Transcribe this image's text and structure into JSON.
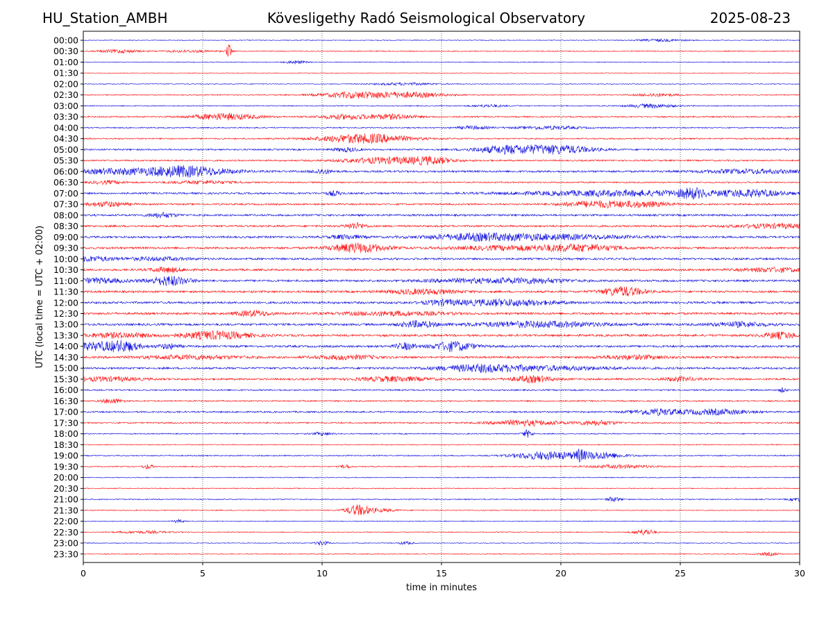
{
  "header": {
    "station": "HU_Station_AMBH",
    "observatory": "Kövesligethy Radó Seismological Observatory",
    "date": "2025-08-23"
  },
  "colors": {
    "even_row": "#0000dd",
    "odd_row": "#ff0000",
    "grid": "#000000"
  },
  "chart_data": {
    "type": "line",
    "title": "Kövesligethy Radó Seismological Observatory",
    "xlabel": "time in minutes",
    "ylabel": "UTC (local time = UTC + 02:00)",
    "xlim": [
      0,
      30
    ],
    "xticks": [
      0,
      5,
      10,
      15,
      20,
      25,
      30
    ],
    "grid": "vertical dotted at x ticks",
    "rows": [
      {
        "label": "00:00",
        "level": 1,
        "bursts": [
          [
            24.2,
            0.7,
            1.5
          ]
        ]
      },
      {
        "label": "00:30",
        "level": 1.2,
        "bursts": [
          [
            1.5,
            0.6,
            2
          ],
          [
            4.5,
            0.8,
            1.5
          ],
          [
            6.1,
            0.08,
            9
          ]
        ]
      },
      {
        "label": "01:00",
        "level": 1,
        "bursts": [
          [
            8.9,
            0.3,
            2
          ]
        ]
      },
      {
        "label": "01:30",
        "level": 0.8,
        "bursts": []
      },
      {
        "label": "02:00",
        "level": 1,
        "bursts": [
          [
            13.5,
            1,
            1.5
          ]
        ]
      },
      {
        "label": "02:30",
        "level": 1.3,
        "bursts": [
          [
            11.5,
            1.1,
            4
          ],
          [
            13.8,
            1,
            3
          ],
          [
            24,
            0.6,
            2
          ]
        ]
      },
      {
        "label": "03:00",
        "level": 1.3,
        "bursts": [
          [
            23.8,
            0.7,
            2.5
          ],
          [
            17,
            0.5,
            1.5
          ]
        ]
      },
      {
        "label": "03:30",
        "level": 1.8,
        "bursts": [
          [
            5.9,
            1,
            4
          ],
          [
            11,
            0.8,
            3
          ],
          [
            13,
            0.7,
            3
          ]
        ]
      },
      {
        "label": "04:00",
        "level": 1.5,
        "bursts": [
          [
            16.3,
            0.5,
            2
          ],
          [
            19.5,
            1,
            2
          ]
        ]
      },
      {
        "label": "04:30",
        "level": 1.8,
        "bursts": [
          [
            11.8,
            1.3,
            6
          ]
        ]
      },
      {
        "label": "05:00",
        "level": 2,
        "bursts": [
          [
            17.8,
            1,
            5
          ],
          [
            20,
            1,
            5
          ],
          [
            11,
            0.4,
            2.5
          ]
        ]
      },
      {
        "label": "05:30",
        "level": 2,
        "bursts": [
          [
            12.8,
            1.3,
            4
          ],
          [
            14.6,
            0.6,
            3.5
          ]
        ]
      },
      {
        "label": "06:00",
        "level": 2.5,
        "bursts": [
          [
            4.2,
            1.3,
            7
          ],
          [
            1.2,
            1,
            3
          ],
          [
            10,
            0.3,
            3
          ],
          [
            28,
            1.5,
            2.5
          ]
        ]
      },
      {
        "label": "06:30",
        "level": 1.8,
        "bursts": [
          [
            1,
            0.5,
            2
          ],
          [
            5,
            1,
            2
          ]
        ]
      },
      {
        "label": "07:00",
        "level": 2.3,
        "bursts": [
          [
            22.5,
            3,
            3.5
          ],
          [
            25.5,
            0.4,
            5
          ],
          [
            28,
            1,
            4
          ],
          [
            10.5,
            0.2,
            3
          ]
        ]
      },
      {
        "label": "07:30",
        "level": 2.2,
        "bursts": [
          [
            21.5,
            1,
            4
          ],
          [
            1,
            0.6,
            3
          ],
          [
            23.5,
            0.8,
            3
          ]
        ]
      },
      {
        "label": "08:00",
        "level": 2.5,
        "bursts": [
          [
            3.3,
            0.4,
            3
          ]
        ]
      },
      {
        "label": "08:30",
        "level": 2.5,
        "bursts": [
          [
            11.4,
            0.3,
            4
          ],
          [
            29,
            1.2,
            2.5
          ]
        ]
      },
      {
        "label": "09:00",
        "level": 2.6,
        "bursts": [
          [
            16.5,
            1.5,
            4
          ],
          [
            20,
            2,
            3
          ],
          [
            11,
            0.5,
            2.5
          ]
        ]
      },
      {
        "label": "09:30",
        "level": 2.6,
        "bursts": [
          [
            11.5,
            0.8,
            6
          ],
          [
            18.5,
            2,
            3
          ],
          [
            21,
            1,
            3
          ]
        ]
      },
      {
        "label": "10:00",
        "level": 2.6,
        "bursts": [
          [
            0.3,
            0.6,
            3
          ],
          [
            3,
            1,
            2
          ]
        ]
      },
      {
        "label": "10:30",
        "level": 2.6,
        "bursts": [
          [
            3.5,
            0.5,
            3
          ],
          [
            29,
            1,
            2.5
          ]
        ]
      },
      {
        "label": "11:00",
        "level": 2.7,
        "bursts": [
          [
            3.6,
            0.6,
            6
          ],
          [
            0.6,
            0.8,
            3
          ],
          [
            16.5,
            1.5,
            2.5
          ],
          [
            19,
            1,
            2.5
          ]
        ]
      },
      {
        "label": "11:30",
        "level": 2.7,
        "bursts": [
          [
            22.6,
            0.6,
            6
          ],
          [
            14.2,
            1,
            3
          ]
        ]
      },
      {
        "label": "12:00",
        "level": 2.8,
        "bursts": [
          [
            17.6,
            1.5,
            4
          ],
          [
            15,
            0.5,
            2.5
          ]
        ]
      },
      {
        "label": "12:30",
        "level": 2.8,
        "bursts": [
          [
            7.1,
            0.5,
            3.5
          ],
          [
            13,
            1.5,
            2.5
          ]
        ]
      },
      {
        "label": "13:00",
        "level": 2.8,
        "bursts": [
          [
            14,
            0.5,
            4
          ],
          [
            19,
            2,
            3.5
          ],
          [
            27.5,
            0.8,
            3
          ]
        ]
      },
      {
        "label": "13:30",
        "level": 2.8,
        "bursts": [
          [
            5.5,
            1,
            5
          ],
          [
            29.2,
            0.5,
            4
          ],
          [
            1.5,
            1,
            3
          ]
        ]
      },
      {
        "label": "14:00",
        "level": 2.8,
        "bursts": [
          [
            15.5,
            0.6,
            6
          ],
          [
            0.7,
            1,
            5
          ],
          [
            1.7,
            0.4,
            4
          ],
          [
            13.5,
            0.3,
            4
          ],
          [
            3.6,
            0.3,
            3
          ]
        ]
      },
      {
        "label": "14:30",
        "level": 2.5,
        "bursts": [
          [
            4.5,
            1.5,
            2.5
          ],
          [
            11,
            1,
            2.5
          ],
          [
            23,
            1,
            2.5
          ]
        ]
      },
      {
        "label": "15:00",
        "level": 2.5,
        "bursts": [
          [
            18.5,
            2.5,
            3
          ],
          [
            16.5,
            1,
            2.5
          ]
        ]
      },
      {
        "label": "15:30",
        "level": 2.5,
        "bursts": [
          [
            18.8,
            0.6,
            4
          ],
          [
            13,
            1,
            3
          ],
          [
            1,
            1,
            2.5
          ],
          [
            25,
            0.5,
            2.5
          ]
        ]
      },
      {
        "label": "16:00",
        "level": 1.9,
        "bursts": [
          [
            29.3,
            0.1,
            3
          ]
        ]
      },
      {
        "label": "16:30",
        "level": 1.8,
        "bursts": [
          [
            1.2,
            0.3,
            3
          ]
        ]
      },
      {
        "label": "17:00",
        "level": 2,
        "bursts": [
          [
            24,
            0.7,
            4
          ],
          [
            26.5,
            1,
            3.5
          ]
        ]
      },
      {
        "label": "17:30",
        "level": 1.8,
        "bursts": [
          [
            18.5,
            1,
            3.5
          ],
          [
            21.5,
            0.6,
            3
          ]
        ]
      },
      {
        "label": "18:00",
        "level": 1.4,
        "bursts": [
          [
            18.6,
            0.15,
            5
          ],
          [
            10,
            0.3,
            2
          ]
        ]
      },
      {
        "label": "18:30",
        "level": 1.2,
        "bursts": []
      },
      {
        "label": "19:00",
        "level": 1.5,
        "bursts": [
          [
            19.3,
            0.9,
            5
          ],
          [
            21.5,
            0.8,
            4.5
          ],
          [
            20.8,
            0.12,
            5
          ]
        ]
      },
      {
        "label": "19:30",
        "level": 1.4,
        "bursts": [
          [
            22.5,
            1,
            2
          ],
          [
            2.7,
            0.15,
            3
          ],
          [
            11,
            0.15,
            2.5
          ]
        ]
      },
      {
        "label": "20:00",
        "level": 1.1,
        "bursts": []
      },
      {
        "label": "20:30",
        "level": 1.2,
        "bursts": []
      },
      {
        "label": "21:00",
        "level": 1.4,
        "bursts": [
          [
            22.2,
            0.2,
            3
          ],
          [
            30,
            0.3,
            2
          ]
        ]
      },
      {
        "label": "21:30",
        "level": 1.2,
        "bursts": [
          [
            11.5,
            0.35,
            7
          ],
          [
            12.5,
            0.5,
            2
          ]
        ]
      },
      {
        "label": "22:00",
        "level": 1,
        "bursts": [
          [
            4,
            0.15,
            2
          ]
        ]
      },
      {
        "label": "22:30",
        "level": 1.1,
        "bursts": [
          [
            23.5,
            0.3,
            4
          ],
          [
            2.5,
            0.8,
            1.5
          ]
        ]
      },
      {
        "label": "23:00",
        "level": 1,
        "bursts": [
          [
            10,
            0.2,
            3
          ],
          [
            13.5,
            0.2,
            2
          ]
        ]
      },
      {
        "label": "23:30",
        "level": 1.1,
        "bursts": [
          [
            28.7,
            0.3,
            2
          ]
        ]
      }
    ]
  }
}
